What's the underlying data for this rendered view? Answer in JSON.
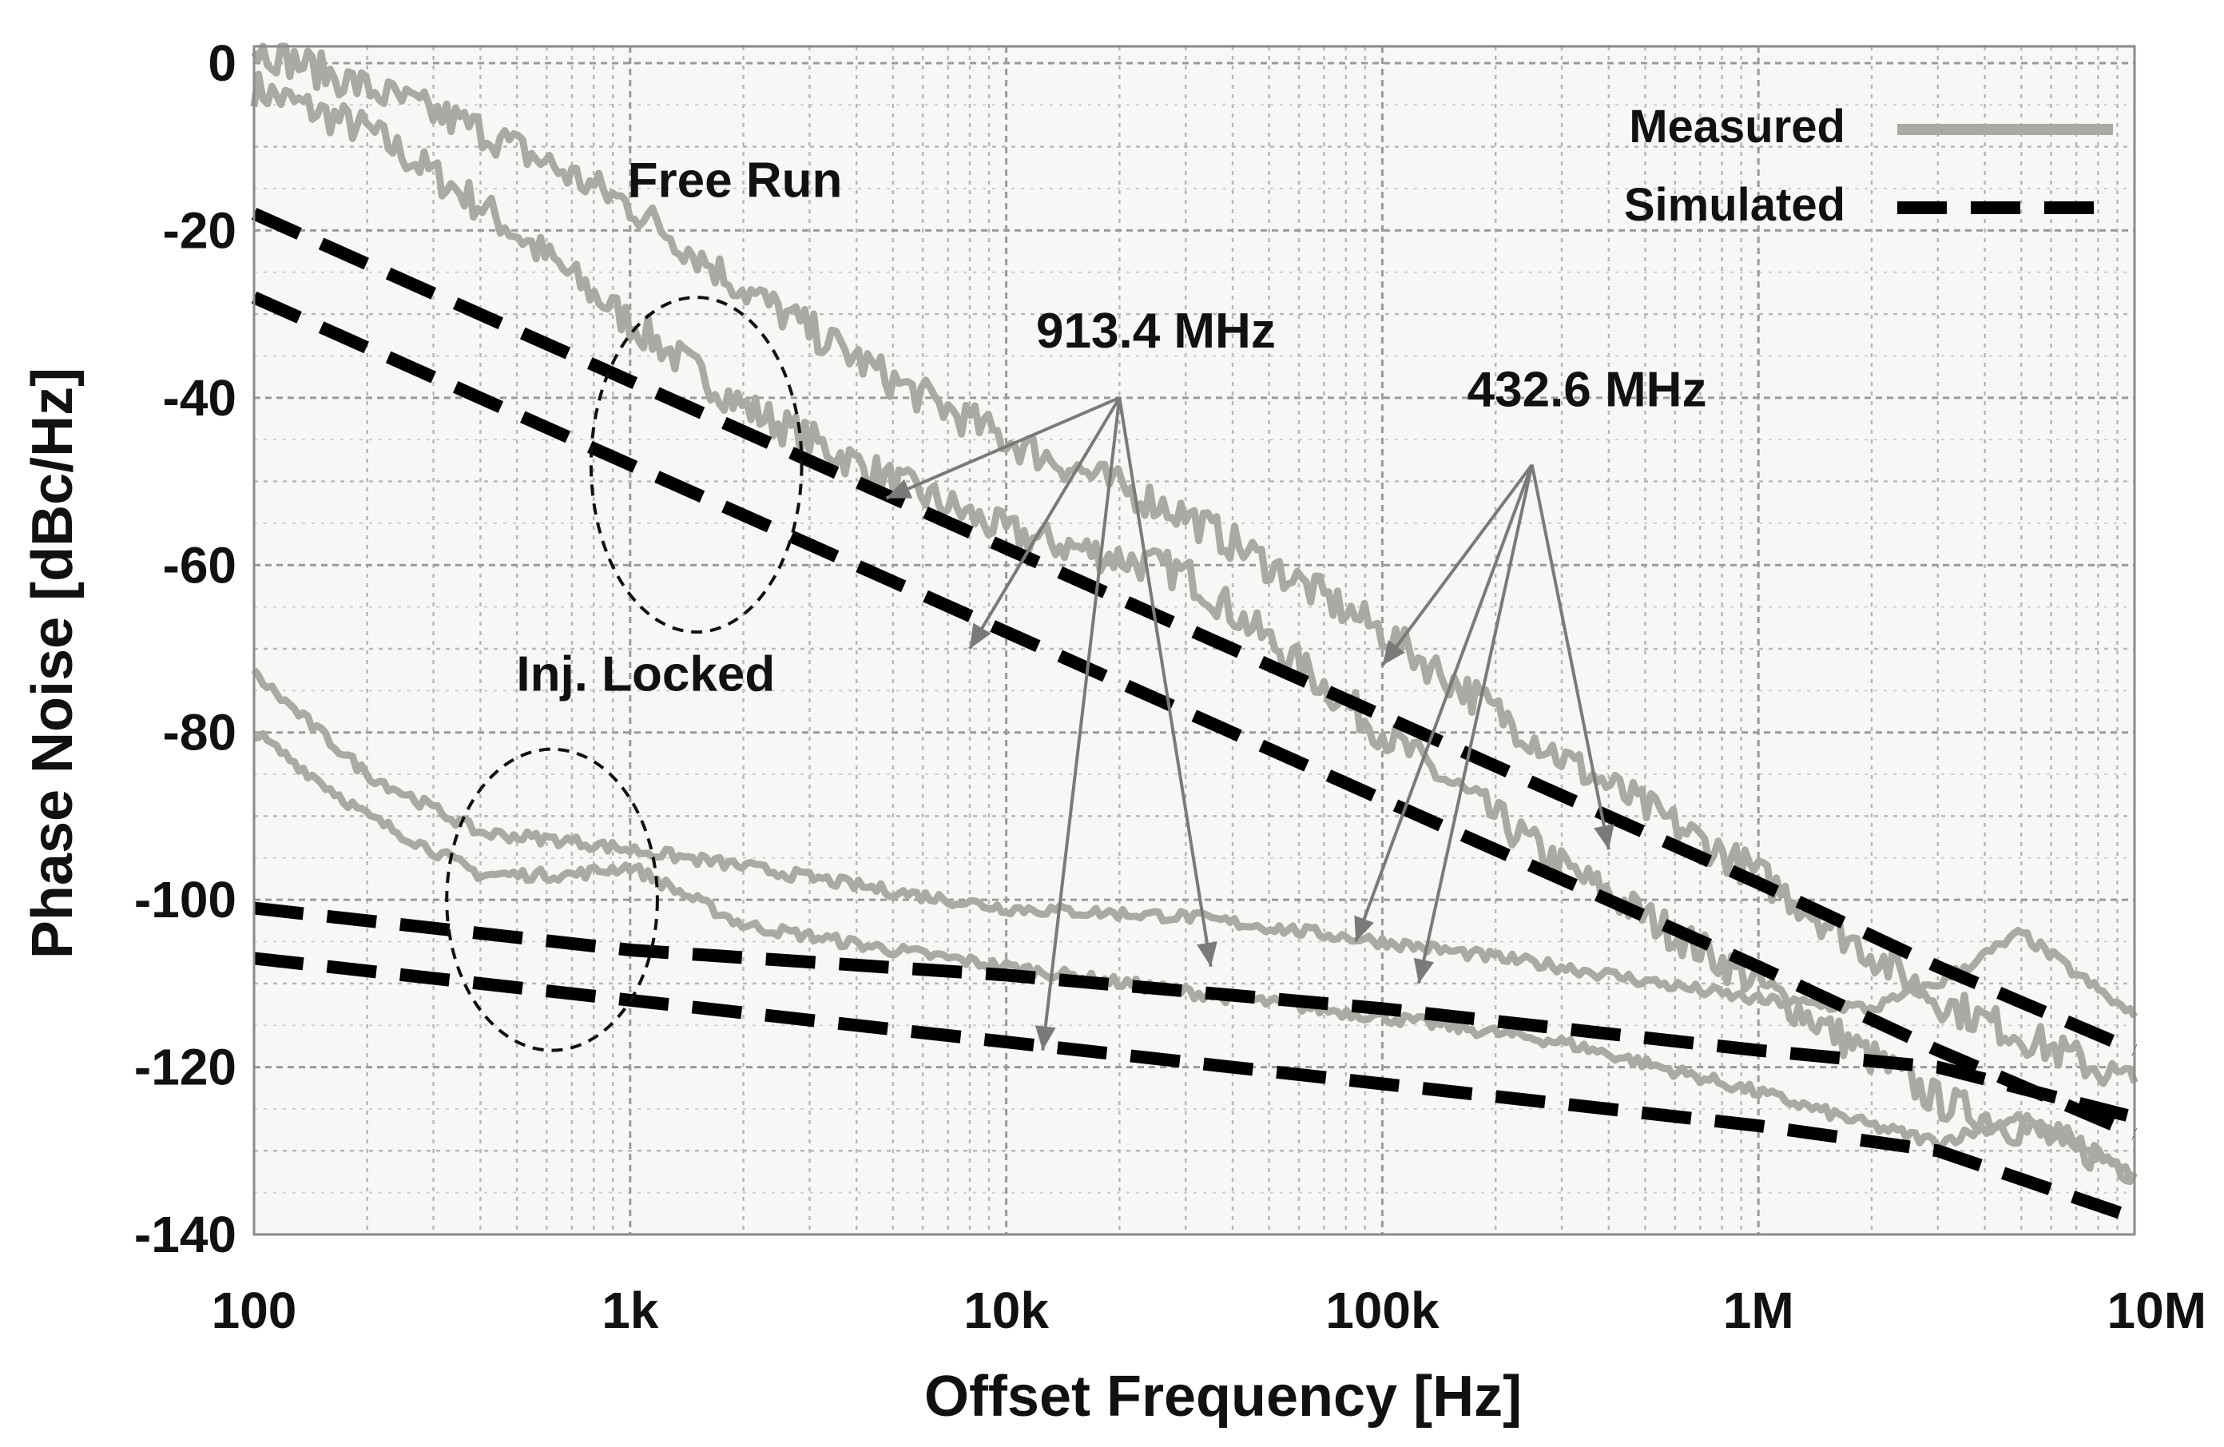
{
  "chart_data": {
    "type": "line",
    "title": "",
    "xlabel": "Offset Frequency  [Hz]",
    "ylabel": "Phase Noise [dBc/Hz]",
    "xscale": "log",
    "xlim": [
      100,
      10000000
    ],
    "ylim": [
      -140,
      2
    ],
    "xticks": [
      100,
      1000,
      10000,
      100000,
      1000000,
      10000000
    ],
    "xtick_labels": [
      "100",
      "1k",
      "10k",
      "100k",
      "1M",
      "10M"
    ],
    "yticks": [
      0,
      -20,
      -40,
      -60,
      -80,
      -100,
      -120,
      -140
    ],
    "ytick_labels": [
      "0",
      "-20",
      "-40",
      "-60",
      "-80",
      "-100",
      "-120",
      "-140"
    ],
    "grid": true,
    "legend": {
      "position": "top-right",
      "entries": [
        {
          "label": "Measured",
          "style": "solid",
          "color": "#aaa9a3"
        },
        {
          "label": "Simulated",
          "style": "dashed",
          "color": "#000000"
        }
      ]
    },
    "series": [
      {
        "name": "Measured free run 913.4 MHz",
        "kind": "measured",
        "x": [
          100,
          200,
          400,
          1000,
          2000,
          5000,
          10000,
          30000,
          100000,
          300000,
          1000000,
          3000000,
          10000000
        ],
        "y": [
          -3,
          -8,
          -17,
          -31,
          -41,
          -50,
          -56,
          -61,
          -80,
          -96,
          -110,
          -124,
          -132
        ]
      },
      {
        "name": "Measured free run 432.6 MHz",
        "kind": "measured",
        "x": [
          100,
          200,
          400,
          1000,
          2000,
          5000,
          10000,
          30000,
          100000,
          300000,
          1000000,
          3000000,
          10000000
        ],
        "y": [
          2,
          -3,
          -8,
          -17,
          -27,
          -38,
          -45,
          -54,
          -68,
          -83,
          -97,
          -112,
          -122
        ]
      },
      {
        "name": "Measured injection locked 913.4 MHz",
        "kind": "measured",
        "x": [
          100,
          200,
          400,
          700,
          1000,
          2000,
          5000,
          10000,
          30000,
          100000,
          300000,
          1000000,
          2000000,
          3000000,
          5000000,
          10000000
        ],
        "y": [
          -80,
          -90,
          -97,
          -97,
          -96,
          -103,
          -106,
          -108,
          -111,
          -114,
          -117,
          -123,
          -127,
          -129,
          -126,
          -133
        ]
      },
      {
        "name": "Measured injection locked 432.6 MHz",
        "kind": "measured",
        "x": [
          100,
          200,
          400,
          700,
          1000,
          2000,
          5000,
          10000,
          30000,
          100000,
          300000,
          1000000,
          2000000,
          3000000,
          5000000,
          10000000
        ],
        "y": [
          -73,
          -85,
          -92,
          -93,
          -94,
          -96,
          -99,
          -101,
          -102,
          -105,
          -108,
          -112,
          -113,
          -110,
          -104,
          -114
        ]
      },
      {
        "name": "Simulated free run 913.4 MHz",
        "kind": "simulated",
        "x": [
          100,
          1000,
          10000,
          100000,
          1000000,
          3000000,
          10000000
        ],
        "y": [
          -28,
          -48,
          -68,
          -88,
          -108,
          -118,
          -128
        ]
      },
      {
        "name": "Simulated free run 432.6 MHz",
        "kind": "simulated",
        "x": [
          100,
          1000,
          10000,
          100000,
          1000000,
          3000000,
          10000000
        ],
        "y": [
          -18,
          -38,
          -58,
          -78,
          -98,
          -108,
          -118
        ]
      },
      {
        "name": "Simulated injection locked 913.4 MHz",
        "kind": "simulated",
        "x": [
          100,
          1000,
          10000,
          100000,
          1000000,
          3000000,
          10000000
        ],
        "y": [
          -107,
          -112,
          -117,
          -122,
          -127,
          -130,
          -138
        ]
      },
      {
        "name": "Simulated injection locked 432.6 MHz",
        "kind": "simulated",
        "x": [
          100,
          1000,
          10000,
          100000,
          1000000,
          3000000,
          10000000
        ],
        "y": [
          -101,
          -106,
          -109,
          -113,
          -118,
          -120,
          -126
        ]
      }
    ],
    "annotations": [
      {
        "text": "Free Run",
        "x": 1900,
        "y": -16
      },
      {
        "text": "Inj. Locked",
        "x": 1100,
        "y": -75
      },
      {
        "text": "913.4 MHz",
        "x": 25000,
        "y": -34
      },
      {
        "text": "432.6 MHz",
        "x": 350000,
        "y": -41
      }
    ],
    "ellipses": [
      {
        "name": "free-run-ellipse",
        "cx": 1500,
        "cy": -48,
        "rx_decades": 0.28,
        "ry": 20
      },
      {
        "name": "inj-locked-ellipse",
        "cx": 620,
        "cy": -100,
        "rx_decades": 0.28,
        "ry": 18
      }
    ],
    "arrows": [
      {
        "from": [
          20000,
          -40
        ],
        "to": [
          4800,
          -52
        ]
      },
      {
        "from": [
          20000,
          -40
        ],
        "to": [
          8000,
          -70
        ]
      },
      {
        "from": [
          20000,
          -40
        ],
        "to": [
          12500,
          -118
        ]
      },
      {
        "from": [
          20000,
          -40
        ],
        "to": [
          35000,
          -108
        ]
      },
      {
        "from": [
          250000,
          -48
        ],
        "to": [
          100000,
          -72
        ]
      },
      {
        "from": [
          250000,
          -48
        ],
        "to": [
          400000,
          -94
        ]
      },
      {
        "from": [
          250000,
          -48
        ],
        "to": [
          85000,
          -105
        ]
      },
      {
        "from": [
          250000,
          -48
        ],
        "to": [
          125000,
          -110
        ]
      }
    ]
  }
}
